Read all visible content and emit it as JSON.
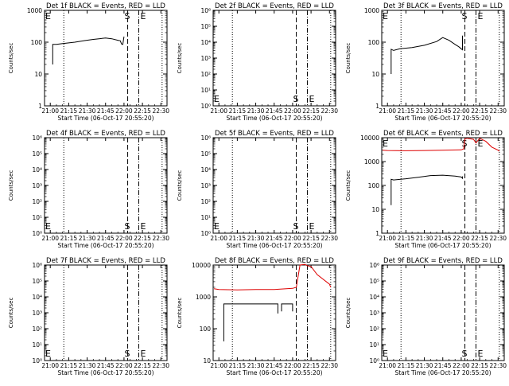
{
  "colors": {
    "events": "#000000",
    "lld": "#dd0000",
    "background": "#ffffff",
    "axis": "#000000"
  },
  "shared": {
    "ylabel": "Counts/sec",
    "xlabel_pre": "Start Time (",
    "xlabel_date": "06-Oct-17 20:55:20",
    "xlabel_post": ")",
    "x_ticks": [
      "21:00",
      "21:15",
      "21:30",
      "21:45",
      "22:00",
      "22:15",
      "22:30"
    ],
    "marker_S": "S",
    "marker_E": "E",
    "marker_S_time": "22:03",
    "marker_E_time": "22:12",
    "dotted_times": [
      "21:11",
      "22:31"
    ]
  },
  "chart_data": [
    {
      "type": "line",
      "title": "Det 1f BLACK = Events, RED = LLD",
      "yscale": "log",
      "ylim": [
        1,
        1000
      ],
      "y_ticks": [
        "1",
        "10",
        "100",
        "1000"
      ],
      "markers_row": "top",
      "series": [
        {
          "name": "Events",
          "color": "#000000",
          "segments": [
            {
              "x": [
                "21:02",
                "21:02",
                "21:05",
                "21:10",
                "21:20",
                "21:28",
                "21:35",
                "21:45",
                "21:50",
                "21:55",
                "21:57",
                "21:58",
                "21:59",
                "22:00"
              ],
              "y": [
                20,
                85,
                85,
                90,
                100,
                112,
                122,
                135,
                128,
                115,
                110,
                88,
                85,
                150
              ]
            }
          ]
        }
      ]
    },
    {
      "type": "line",
      "title": "Det 2f BLACK = Events, RED = LLD",
      "yscale": "log",
      "ylim": [
        1,
        1000000
      ],
      "y_ticks": [
        "10⁰",
        "10¹",
        "10²",
        "10³",
        "10⁴",
        "10⁵",
        "10⁶"
      ],
      "markers_row": "bottom",
      "series": []
    },
    {
      "type": "line",
      "title": "Det 3f BLACK = Events, RED = LLD",
      "yscale": "log",
      "ylim": [
        1,
        1000
      ],
      "y_ticks": [
        "1",
        "10",
        "100",
        "1000"
      ],
      "markers_row": "top",
      "series": [
        {
          "name": "Events",
          "color": "#000000",
          "segments": [
            {
              "x": [
                "21:03",
                "21:03",
                "21:05",
                "21:10",
                "21:20",
                "21:30",
                "21:40",
                "21:45",
                "21:50",
                "21:55",
                "21:58",
                "22:00",
                "22:01",
                "22:01"
              ],
              "y": [
                10,
                60,
                55,
                62,
                68,
                80,
                105,
                140,
                115,
                85,
                72,
                62,
                58,
                160
              ]
            }
          ]
        }
      ]
    },
    {
      "type": "line",
      "title": "Det 4f BLACK = Events, RED = LLD",
      "yscale": "log",
      "ylim": [
        1,
        1000000
      ],
      "y_ticks": [
        "10⁰",
        "10¹",
        "10²",
        "10³",
        "10⁴",
        "10⁵",
        "10⁶"
      ],
      "markers_row": "bottom",
      "series": []
    },
    {
      "type": "line",
      "title": "Det 5f BLACK = Events, RED = LLD",
      "yscale": "log",
      "ylim": [
        1,
        1000000
      ],
      "y_ticks": [
        "10⁰",
        "10¹",
        "10²",
        "10³",
        "10⁴",
        "10⁵",
        "10⁶"
      ],
      "markers_row": "bottom",
      "series": []
    },
    {
      "type": "line",
      "title": "Det 6f BLACK = Events, RED = LLD",
      "yscale": "log",
      "ylim": [
        1,
        10000
      ],
      "y_ticks": [
        "1",
        "10",
        "100",
        "1000",
        "10000"
      ],
      "markers_row": "top",
      "series": [
        {
          "name": "Events",
          "color": "#000000",
          "segments": [
            {
              "x": [
                "21:03",
                "21:03",
                "21:05",
                "21:15",
                "21:25",
                "21:35",
                "21:45",
                "21:55",
                "22:00",
                "22:01",
                "22:01"
              ],
              "y": [
                15,
                180,
                170,
                190,
                220,
                260,
                270,
                245,
                225,
                200,
                240
              ]
            }
          ]
        },
        {
          "name": "LLD",
          "color": "#dd0000",
          "segments": [
            {
              "x": [
                "20:56",
                "21:00",
                "21:15",
                "21:30",
                "21:45",
                "22:00",
                "22:02",
                "22:03",
                "22:05",
                "22:10",
                "22:12",
                "22:15",
                "22:20",
                "22:25",
                "22:30",
                "22:31"
              ],
              "y": [
                3000,
                2900,
                2850,
                2900,
                3000,
                3100,
                3400,
                9000,
                9500,
                8500,
                6000,
                9500,
                7000,
                4000,
                3000,
                2700
              ]
            }
          ]
        }
      ]
    },
    {
      "type": "line",
      "title": "Det 7f BLACK = Events, RED = LLD",
      "yscale": "log",
      "ylim": [
        1,
        1000000
      ],
      "y_ticks": [
        "10⁰",
        "10¹",
        "10²",
        "10³",
        "10⁴",
        "10⁵",
        "10⁶"
      ],
      "markers_row": "bottom",
      "series": []
    },
    {
      "type": "line",
      "title": "Det 8f BLACK = Events, RED = LLD",
      "yscale": "log",
      "ylim": [
        10,
        10000
      ],
      "y_ticks": [
        "10",
        "100",
        "1000",
        "10000"
      ],
      "markers_row": "none",
      "series": [
        {
          "name": "Events",
          "color": "#000000",
          "segments": [
            {
              "x": [
                "21:04",
                "21:04",
                "21:07",
                "21:25",
                "21:40",
                "21:48",
                "21:48"
              ],
              "y": [
                40,
                600,
                600,
                600,
                600,
                600,
                300
              ]
            },
            {
              "x": [
                "21:51",
                "21:51",
                "21:53",
                "22:00",
                "22:00"
              ],
              "y": [
                350,
                600,
                600,
                600,
                350
              ]
            }
          ]
        },
        {
          "name": "LLD",
          "color": "#dd0000",
          "segments": [
            {
              "x": [
                "20:56",
                "21:00",
                "21:15",
                "21:30",
                "21:45",
                "21:55",
                "22:00",
                "22:03",
                "22:06",
                "22:10",
                "22:12",
                "22:15",
                "22:20",
                "22:30",
                "22:31"
              ],
              "y": [
                1800,
                1700,
                1650,
                1700,
                1700,
                1800,
                1850,
                2000,
                10000,
                10500,
                9500,
                9000,
                5000,
                2500,
                2000
              ]
            }
          ]
        }
      ]
    },
    {
      "type": "line",
      "title": "Det 9f BLACK = Events, RED = LLD",
      "yscale": "log",
      "ylim": [
        1,
        1000000
      ],
      "y_ticks": [
        "10⁰",
        "10¹",
        "10²",
        "10³",
        "10⁴",
        "10⁵",
        "10⁶"
      ],
      "markers_row": "bottom",
      "series": []
    }
  ]
}
